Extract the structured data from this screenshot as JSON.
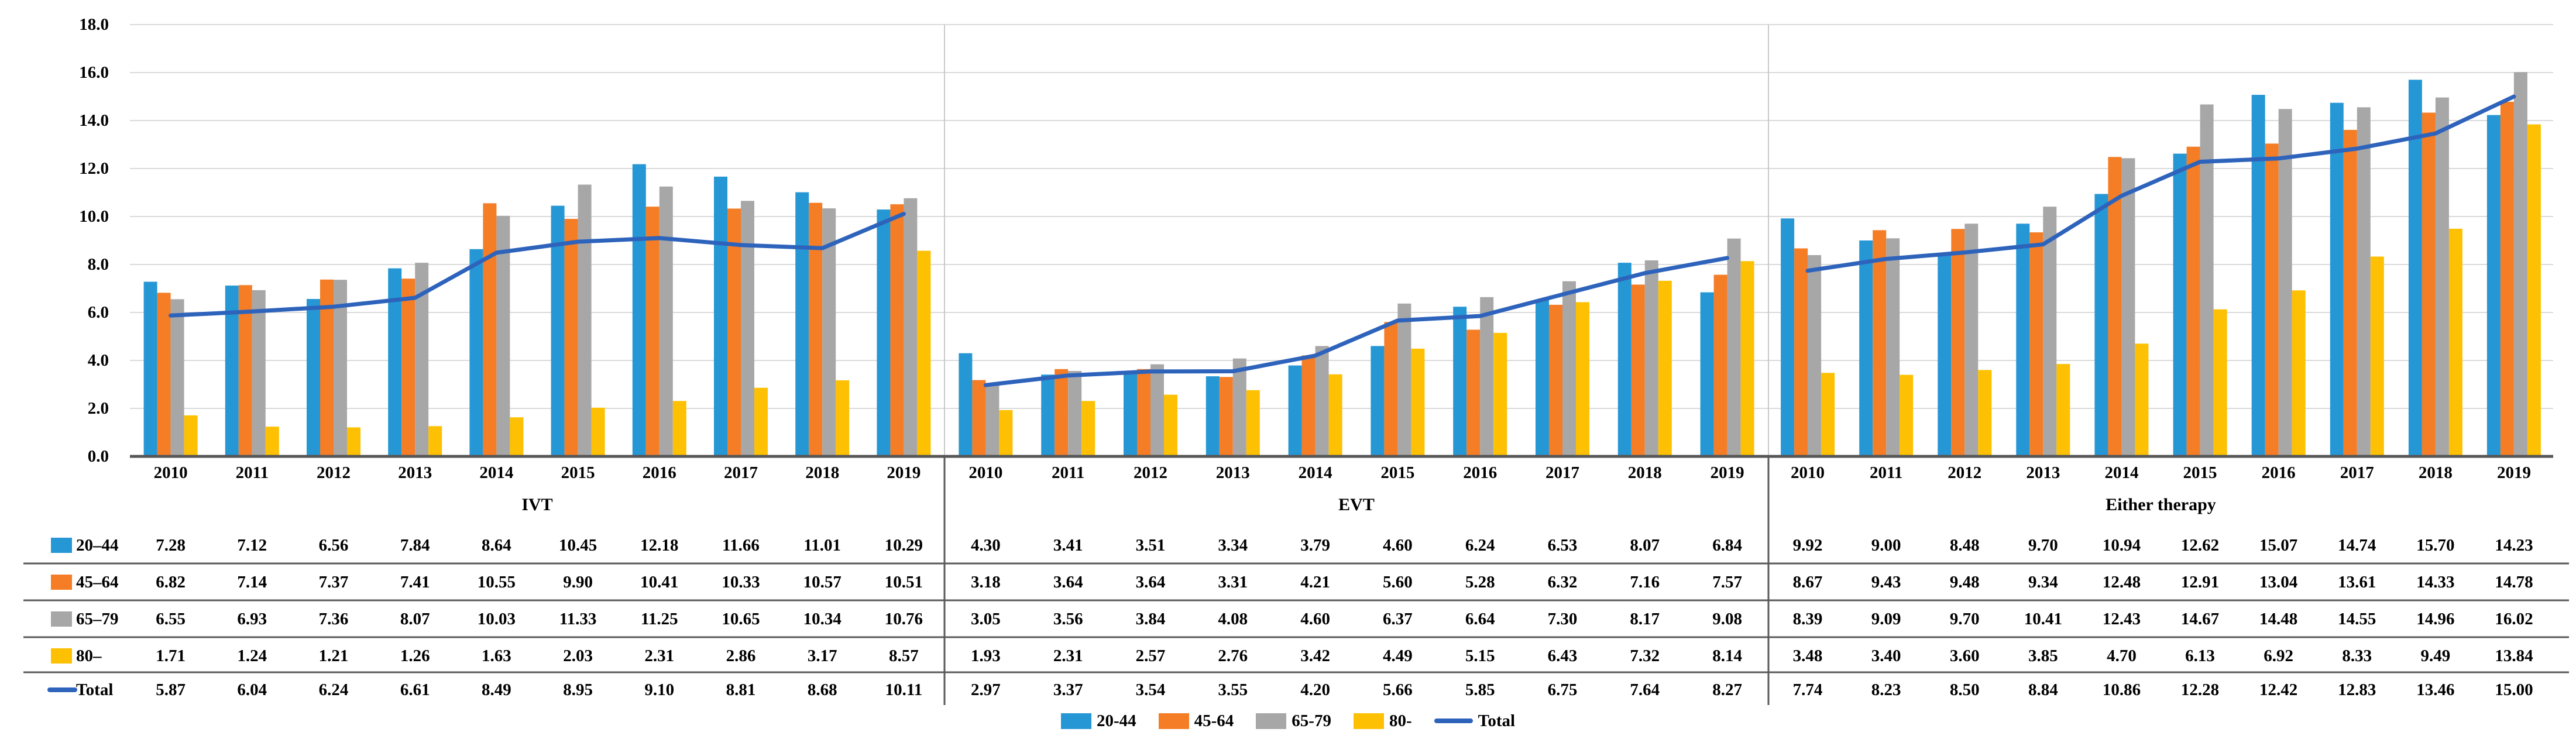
{
  "figure": {
    "y_axis_ticks": [
      "18.0",
      "16.0",
      "14.0",
      "12.0",
      "10.0",
      "8.0",
      "6.0",
      "4.0",
      "2.0",
      "0.0"
    ],
    "row_labels": [
      "20–44",
      "45–64",
      "65–79",
      "80–",
      "Total"
    ],
    "legend": {
      "items": [
        {
          "label": "20-44",
          "swatch": "bar",
          "color": "#2697D5"
        },
        {
          "label": "45-64",
          "swatch": "bar",
          "color": "#F47D26"
        },
        {
          "label": "65-79",
          "swatch": "bar",
          "color": "#A7A7A7"
        },
        {
          "label": "80-",
          "swatch": "bar",
          "color": "#FEC002"
        },
        {
          "label": "Total",
          "swatch": "line",
          "color": "#2E63BC"
        }
      ]
    },
    "colors": {
      "blue": "#2697D5",
      "orange": "#F47D26",
      "gray": "#A7A7A7",
      "yellow": "#FEC002",
      "total_line": "#2E63BC",
      "gridline": "#DBDBDB",
      "panel_divider": "#C9C9C9",
      "axis_baseline": "#565656",
      "table_line": "#595959"
    }
  },
  "chart_data": [
    {
      "type": "bar",
      "title": "IVT",
      "categories": [
        "2010",
        "2011",
        "2012",
        "2013",
        "2014",
        "2015",
        "2016",
        "2017",
        "2018",
        "2019"
      ],
      "series": [
        {
          "name": "20–44",
          "color": "#2697D5",
          "values": [
            7.28,
            7.12,
            6.56,
            7.84,
            8.64,
            10.45,
            12.18,
            11.66,
            11.01,
            10.29
          ]
        },
        {
          "name": "45–64",
          "color": "#F47D26",
          "values": [
            6.82,
            7.14,
            7.37,
            7.41,
            10.55,
            9.9,
            10.41,
            10.33,
            10.57,
            10.51
          ]
        },
        {
          "name": "65–79",
          "color": "#A7A7A7",
          "values": [
            6.55,
            6.93,
            7.36,
            8.07,
            10.03,
            11.33,
            11.25,
            10.65,
            10.34,
            10.76
          ]
        },
        {
          "name": "80–",
          "color": "#FEC002",
          "values": [
            1.71,
            1.24,
            1.21,
            1.26,
            1.63,
            2.03,
            2.31,
            2.86,
            3.17,
            8.57
          ]
        }
      ],
      "line_series": {
        "name": "Total",
        "color": "#2E63BC",
        "values": [
          5.87,
          6.04,
          6.24,
          6.61,
          8.49,
          8.95,
          9.1,
          8.81,
          8.68,
          10.11
        ]
      },
      "ylim": [
        0,
        18
      ],
      "grid": true,
      "legend_position": "bottom"
    },
    {
      "type": "bar",
      "title": "EVT",
      "categories": [
        "2010",
        "2011",
        "2012",
        "2013",
        "2014",
        "2015",
        "2016",
        "2017",
        "2018",
        "2019"
      ],
      "series": [
        {
          "name": "20–44",
          "color": "#2697D5",
          "values": [
            4.3,
            3.41,
            3.51,
            3.34,
            3.79,
            4.6,
            6.24,
            6.53,
            8.07,
            6.84
          ]
        },
        {
          "name": "45–64",
          "color": "#F47D26",
          "values": [
            3.18,
            3.64,
            3.64,
            3.31,
            4.21,
            5.6,
            5.28,
            6.32,
            7.16,
            7.57
          ]
        },
        {
          "name": "65–79",
          "color": "#A7A7A7",
          "values": [
            3.05,
            3.56,
            3.84,
            4.08,
            4.6,
            6.37,
            6.64,
            7.3,
            8.17,
            9.08
          ]
        },
        {
          "name": "80–",
          "color": "#FEC002",
          "values": [
            1.93,
            2.31,
            2.57,
            2.76,
            3.42,
            4.49,
            5.15,
            6.43,
            7.32,
            8.14
          ]
        }
      ],
      "line_series": {
        "name": "Total",
        "color": "#2E63BC",
        "values": [
          2.97,
          3.37,
          3.54,
          3.55,
          4.2,
          5.66,
          5.85,
          6.75,
          7.64,
          8.27
        ]
      },
      "ylim": [
        0,
        18
      ],
      "grid": true,
      "legend_position": "bottom"
    },
    {
      "type": "bar",
      "title": "Either therapy",
      "categories": [
        "2010",
        "2011",
        "2012",
        "2013",
        "2014",
        "2015",
        "2016",
        "2017",
        "2018",
        "2019"
      ],
      "series": [
        {
          "name": "20–44",
          "color": "#2697D5",
          "values": [
            9.92,
            9.0,
            8.48,
            9.7,
            10.94,
            12.62,
            15.07,
            14.74,
            15.7,
            14.23
          ]
        },
        {
          "name": "45–64",
          "color": "#F47D26",
          "values": [
            8.67,
            9.43,
            9.48,
            9.34,
            12.48,
            12.91,
            13.04,
            13.61,
            14.33,
            14.78
          ]
        },
        {
          "name": "65–79",
          "color": "#A7A7A7",
          "values": [
            8.39,
            9.09,
            9.7,
            10.41,
            12.43,
            14.67,
            14.48,
            14.55,
            14.96,
            16.02
          ]
        },
        {
          "name": "80–",
          "color": "#FEC002",
          "values": [
            3.48,
            3.4,
            3.6,
            3.85,
            4.7,
            6.13,
            6.92,
            8.33,
            9.49,
            13.84
          ]
        }
      ],
      "line_series": {
        "name": "Total",
        "color": "#2E63BC",
        "values": [
          7.74,
          8.23,
          8.5,
          8.84,
          10.86,
          12.28,
          12.42,
          12.83,
          13.46,
          15.0
        ]
      },
      "ylim": [
        0,
        18
      ],
      "grid": true,
      "legend_position": "bottom"
    }
  ],
  "table": {
    "sections": [
      {
        "title": "IVT",
        "rows": [
          [
            "7.28",
            "7.12",
            "6.56",
            "7.84",
            "8.64",
            "10.45",
            "12.18",
            "11.66",
            "11.01",
            "10.29"
          ],
          [
            "6.82",
            "7.14",
            "7.37",
            "7.41",
            "10.55",
            "9.90",
            "10.41",
            "10.33",
            "10.57",
            "10.51"
          ],
          [
            "6.55",
            "6.93",
            "7.36",
            "8.07",
            "10.03",
            "11.33",
            "11.25",
            "10.65",
            "10.34",
            "10.76"
          ],
          [
            "1.71",
            "1.24",
            "1.21",
            "1.26",
            "1.63",
            "2.03",
            "2.31",
            "2.86",
            "3.17",
            "8.57"
          ],
          [
            "5.87",
            "6.04",
            "6.24",
            "6.61",
            "8.49",
            "8.95",
            "9.10",
            "8.81",
            "8.68",
            "10.11"
          ]
        ]
      },
      {
        "title": "EVT",
        "rows": [
          [
            "4.30",
            "3.41",
            "3.51",
            "3.34",
            "3.79",
            "4.60",
            "6.24",
            "6.53",
            "8.07",
            "6.84"
          ],
          [
            "3.18",
            "3.64",
            "3.64",
            "3.31",
            "4.21",
            "5.60",
            "5.28",
            "6.32",
            "7.16",
            "7.57"
          ],
          [
            "3.05",
            "3.56",
            "3.84",
            "4.08",
            "4.60",
            "6.37",
            "6.64",
            "7.30",
            "8.17",
            "9.08"
          ],
          [
            "1.93",
            "2.31",
            "2.57",
            "2.76",
            "3.42",
            "4.49",
            "5.15",
            "6.43",
            "7.32",
            "8.14"
          ],
          [
            "2.97",
            "3.37",
            "3.54",
            "3.55",
            "4.20",
            "5.66",
            "5.85",
            "6.75",
            "7.64",
            "8.27"
          ]
        ]
      },
      {
        "title": "Either therapy",
        "rows": [
          [
            "9.92",
            "9.00",
            "8.48",
            "9.70",
            "10.94",
            "12.62",
            "15.07",
            "14.74",
            "15.70",
            "14.23"
          ],
          [
            "8.67",
            "9.43",
            "9.48",
            "9.34",
            "12.48",
            "12.91",
            "13.04",
            "13.61",
            "14.33",
            "14.78"
          ],
          [
            "8.39",
            "9.09",
            "9.70",
            "10.41",
            "12.43",
            "14.67",
            "14.48",
            "14.55",
            "14.96",
            "16.02"
          ],
          [
            "3.48",
            "3.40",
            "3.60",
            "3.85",
            "4.70",
            "6.13",
            "6.92",
            "8.33",
            "9.49",
            "13.84"
          ],
          [
            "7.74",
            "8.23",
            "8.50",
            "8.84",
            "10.86",
            "12.28",
            "12.42",
            "12.83",
            "13.46",
            "15.00"
          ]
        ]
      }
    ]
  }
}
